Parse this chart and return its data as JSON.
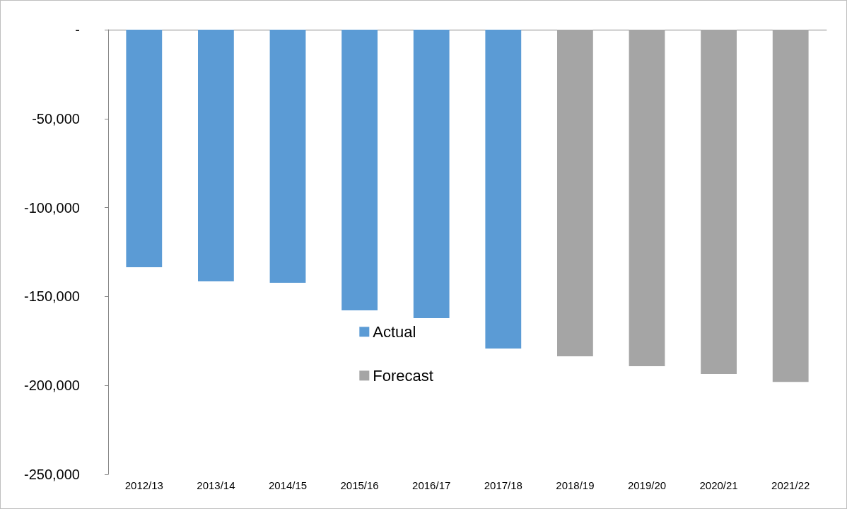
{
  "chart_data": {
    "type": "bar",
    "categories": [
      "2012/13",
      "2013/14",
      "2014/15",
      "2015/16",
      "2016/17",
      "2017/18",
      "2018/19",
      "2019/20",
      "2020/21",
      "2021/22"
    ],
    "series": [
      {
        "name": "Actual",
        "color": "#5b9bd5",
        "values": [
          -133500,
          -141500,
          -142300,
          -157800,
          -162200,
          -179300,
          null,
          null,
          null,
          null
        ]
      },
      {
        "name": "Forecast",
        "color": "#a5a5a5",
        "values": [
          null,
          null,
          null,
          null,
          null,
          null,
          -183600,
          -189200,
          -193600,
          -198000
        ]
      }
    ],
    "stacked": true,
    "ylim": [
      -250000,
      0
    ],
    "yticks": [
      {
        "value": -250000,
        "label": "-250,000"
      },
      {
        "value": -200000,
        "label": "-200,000"
      },
      {
        "value": -150000,
        "label": "-150,000"
      },
      {
        "value": -100000,
        "label": "-100,000"
      },
      {
        "value": -50000,
        "label": "-50,000"
      },
      {
        "value": 0,
        "label": "-"
      }
    ],
    "grid": false,
    "legend": "center"
  }
}
